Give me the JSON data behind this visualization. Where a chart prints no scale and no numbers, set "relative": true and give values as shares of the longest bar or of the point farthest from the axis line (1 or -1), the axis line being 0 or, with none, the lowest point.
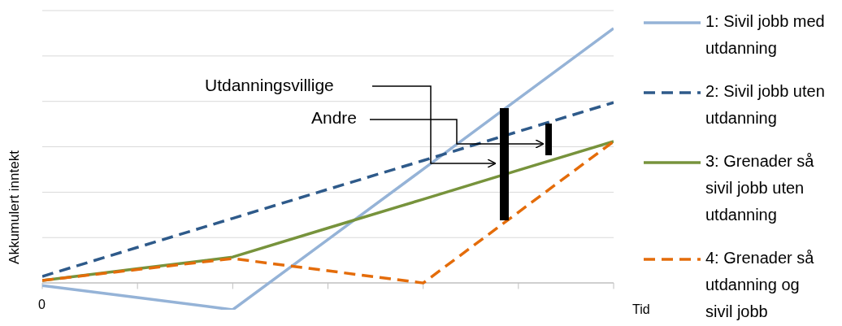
{
  "chart_data": {
    "type": "line",
    "relative": true,
    "xlabel": "Tid",
    "ylabel": "Akkumulert inntekt",
    "categories": [
      null,
      null,
      null,
      null,
      null,
      null,
      null
    ],
    "grid": "y",
    "legend": "right",
    "annotations": [
      "Utdanningsvillige",
      "Andre",
      "0"
    ],
    "series": [
      {
        "name": "1: Sivil jobb med utdanning",
        "color": "#95b3d7",
        "line_style": "solid",
        "values": [
          -0.01,
          -0.057,
          -0.105,
          0.171,
          0.447,
          0.724,
          1
        ]
      },
      {
        "name": "2: Sivil jobb uten utdanning",
        "color": "#2e5a8a",
        "line_style": "dashed",
        "values": [
          0.026,
          0.14,
          0.254,
          0.368,
          0.481,
          0.595,
          0.709
        ]
      },
      {
        "name": "3: Grenader så sivil jobb uten utdanning",
        "color": "#77933c",
        "line_style": "solid",
        "values": [
          0.01,
          0.056,
          0.102,
          0.216,
          0.329,
          0.443,
          0.556
        ]
      },
      {
        "name": "4: Grenader så utdanning og sivil jobb",
        "color": "#e46c0a",
        "line_style": "dashed",
        "values": [
          0.01,
          0.053,
          0.096,
          0.048,
          0,
          0.278,
          0.556
        ]
      }
    ]
  }
}
